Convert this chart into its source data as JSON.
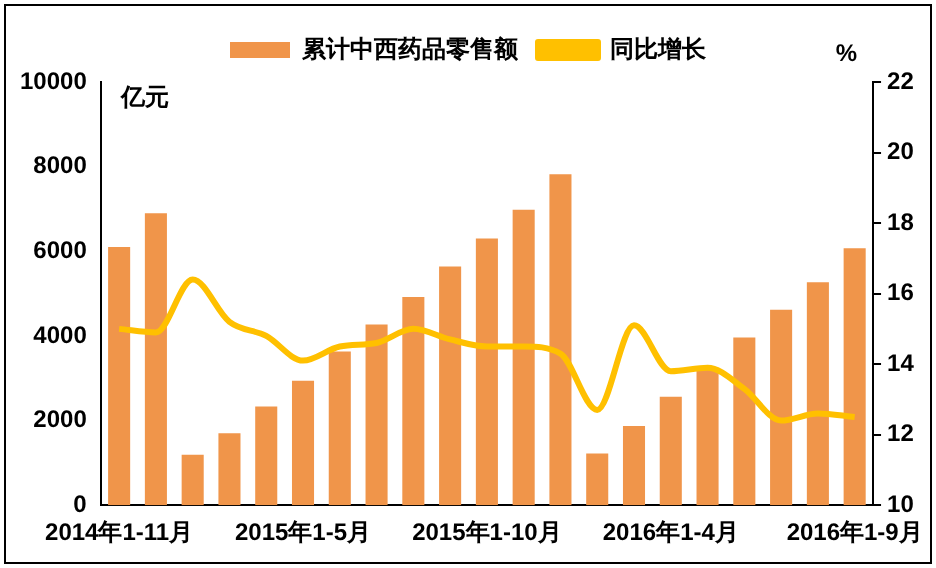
{
  "chart_data": {
    "type": "bar",
    "categories": [
      "2014年1-11月",
      null,
      null,
      null,
      null,
      "2015年1-5月",
      null,
      null,
      null,
      null,
      "2015年1-10月",
      null,
      null,
      null,
      null,
      "2016年1-4月",
      null,
      null,
      null,
      null,
      "2016年1-9月"
    ],
    "series": [
      {
        "name": "累计中西药品零售额",
        "color": "#f0954a",
        "values": [
          6100,
          6900,
          1190,
          1700,
          2330,
          2940,
          3630,
          4270,
          4920,
          5640,
          6300,
          6980,
          7820,
          1220,
          1870,
          2560,
          3250,
          3960,
          4620,
          5270,
          6070
        ]
      },
      {
        "name": "同比增长",
        "type": "line",
        "axis": "y2",
        "color": "#ffc000",
        "values": [
          15.0,
          14.9,
          16.4,
          15.2,
          14.8,
          14.1,
          14.5,
          14.6,
          15.0,
          14.7,
          14.5,
          14.5,
          14.3,
          12.7,
          15.1,
          13.8,
          13.9,
          13.3,
          12.4,
          12.6,
          12.5
        ]
      }
    ],
    "ylabel": "亿元",
    "y2label": "%",
    "ylim": [
      0,
      10000
    ],
    "yticks": [
      0,
      2000,
      4000,
      6000,
      8000,
      10000
    ],
    "y2lim": [
      10,
      22
    ],
    "y2ticks": [
      10,
      12,
      14,
      16,
      18,
      20,
      22
    ],
    "grid": false,
    "legend": "top",
    "marker": "none"
  }
}
